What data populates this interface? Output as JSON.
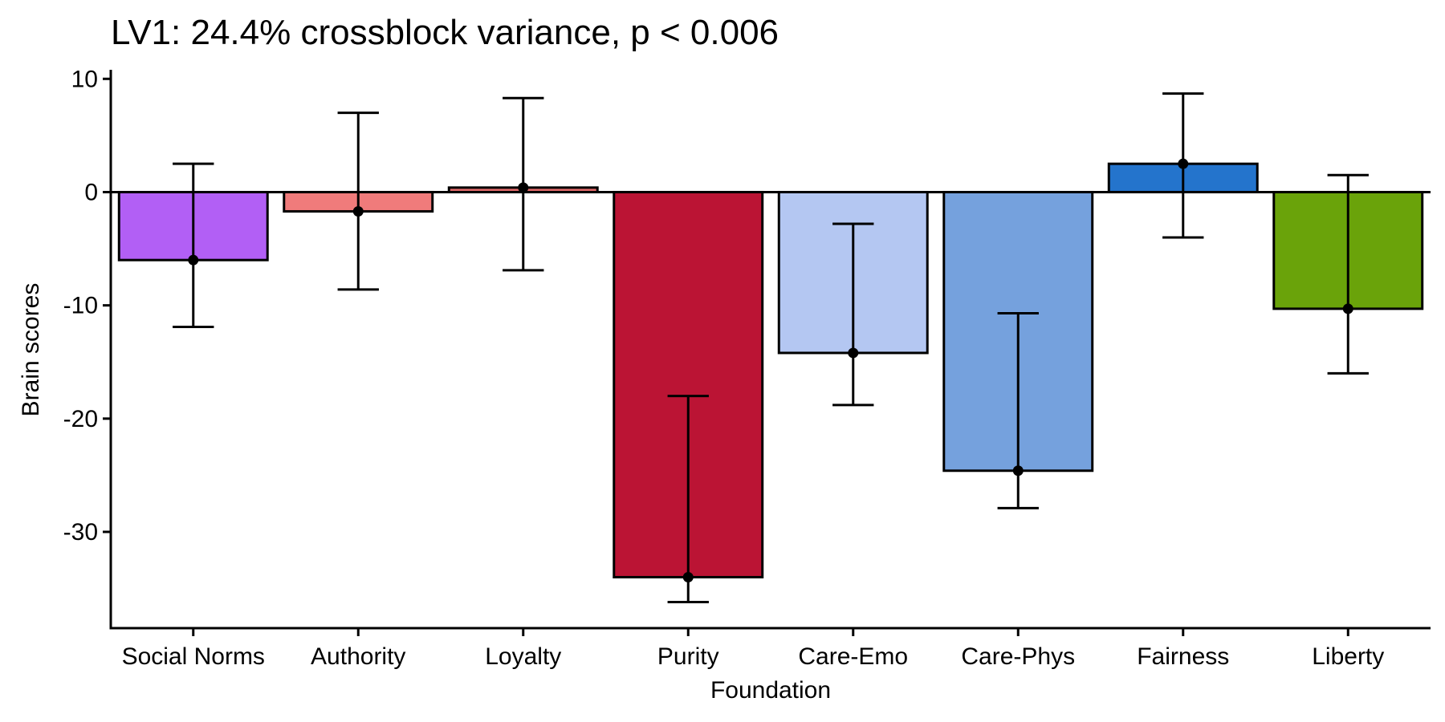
{
  "chart_data": {
    "type": "bar",
    "title": "LV1: 24.4% crossblock variance, p < 0.006",
    "xlabel": "Foundation",
    "ylabel": "Brain scores",
    "ylim": [
      -38.5,
      10.8
    ],
    "yticks": [
      10,
      0,
      -10,
      -20,
      -30
    ],
    "grid": false,
    "categories": [
      "Social Norms",
      "Authority",
      "Loyalty",
      "Purity",
      "Care-Emo",
      "Care-Phys",
      "Fairness",
      "Liberty"
    ],
    "values": [
      -6.0,
      -1.7,
      0.4,
      -34.0,
      -14.2,
      -24.6,
      2.5,
      -10.3
    ],
    "error_low": [
      -11.9,
      -8.6,
      -6.9,
      -36.2,
      -18.8,
      -27.9,
      -4.0,
      -16.0
    ],
    "error_high": [
      2.5,
      7.0,
      8.3,
      -18.0,
      -2.8,
      -10.7,
      8.7,
      1.5
    ],
    "colors": [
      "#b25ff5",
      "#f07b7b",
      "#e06a6a",
      "#bb1434",
      "#b4c7f2",
      "#75a1dd",
      "#2474cc",
      "#6aa30a"
    ]
  }
}
